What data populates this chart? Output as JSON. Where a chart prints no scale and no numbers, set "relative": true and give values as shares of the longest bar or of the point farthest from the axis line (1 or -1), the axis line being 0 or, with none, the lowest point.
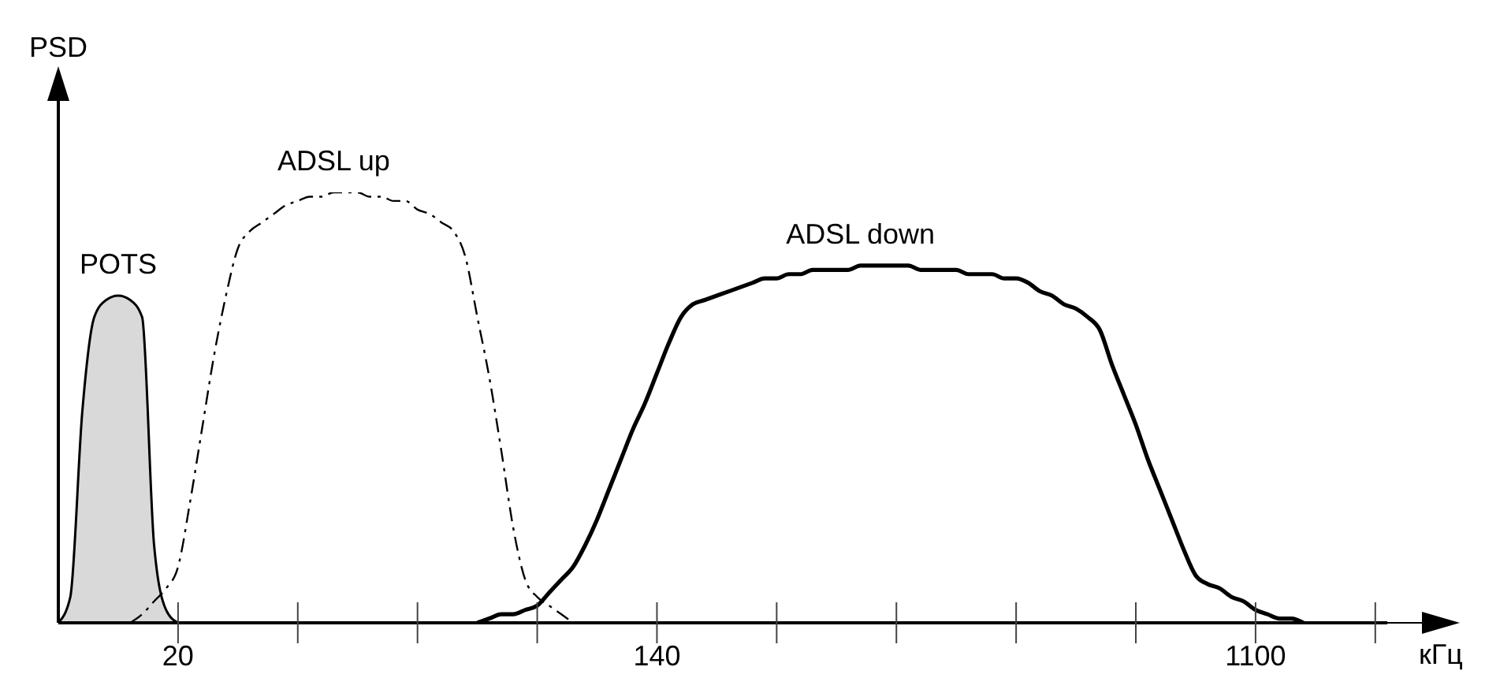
{
  "chart_data": {
    "type": "line",
    "relative": true,
    "xlabel": "кГц",
    "ylabel": "PSD",
    "tick_labels": "x",
    "categories": [
      null,
      null,
      null,
      null,
      null,
      null,
      null,
      null,
      null,
      null,
      "20",
      null,
      null,
      null,
      null,
      null,
      null,
      null,
      null,
      null,
      null,
      null,
      null,
      null,
      null,
      null,
      null,
      null,
      null,
      null,
      null,
      null,
      null,
      null,
      null,
      null,
      null,
      null,
      null,
      null,
      null,
      null,
      null,
      null,
      null,
      null,
      null,
      null,
      null,
      null,
      "140",
      null,
      null,
      null,
      null,
      null,
      null,
      null,
      null,
      null,
      null,
      null,
      null,
      null,
      null,
      null,
      null,
      null,
      null,
      null,
      null,
      null,
      null,
      null,
      null,
      null,
      null,
      null,
      null,
      null,
      null,
      null,
      null,
      null,
      null,
      null,
      null,
      null,
      null,
      null,
      null,
      null,
      null,
      null,
      null,
      null,
      null,
      null,
      null,
      null,
      "1100",
      null,
      null,
      null,
      null,
      null,
      null,
      null,
      null,
      null,
      null,
      null
    ],
    "series": [
      {
        "name": "POTS",
        "type": "area",
        "color": "#d9d9d9",
        "line_style": "solid",
        "values": [
          0,
          0.06,
          0.49,
          0.71,
          0.75,
          0.76,
          0.75,
          0.71,
          0.18,
          0.03,
          0,
          null,
          null,
          null,
          null,
          null,
          null,
          null,
          null,
          null,
          null,
          null,
          null,
          null,
          null,
          null,
          null,
          null,
          null,
          null,
          null,
          null,
          null,
          null,
          null,
          null,
          null,
          null,
          null,
          null,
          null,
          null,
          null,
          null,
          null,
          null,
          null,
          null,
          null,
          null,
          null,
          null,
          null,
          null,
          null,
          null,
          null,
          null,
          null,
          null,
          null,
          null,
          null,
          null,
          null,
          null,
          null,
          null,
          null,
          null,
          null,
          null,
          null,
          null,
          null,
          null,
          null,
          null,
          null,
          null,
          null,
          null,
          null,
          null,
          null,
          null,
          null,
          null,
          null,
          null,
          null,
          null,
          null,
          null,
          null,
          null,
          null,
          null,
          null,
          null,
          null,
          null,
          null,
          null,
          null,
          null,
          null,
          null,
          null,
          null,
          null,
          null
        ]
      },
      {
        "name": "ADSL up",
        "color": "#000000",
        "line_style": "dashed",
        "values": [
          null,
          null,
          null,
          null,
          null,
          null,
          0,
          0.02,
          0.05,
          0.08,
          0.13,
          0.28,
          0.45,
          0.62,
          0.76,
          0.87,
          0.91,
          0.93,
          0.95,
          0.97,
          0.98,
          0.99,
          0.99,
          1,
          1,
          1,
          0.99,
          0.99,
          0.98,
          0.98,
          0.96,
          0.95,
          0.93,
          0.91,
          0.85,
          0.71,
          0.57,
          0.4,
          0.22,
          0.1,
          0.06,
          0.04,
          0.02,
          0,
          null,
          null,
          null,
          null,
          null,
          null,
          null,
          null,
          null,
          null,
          null,
          null,
          null,
          null,
          null,
          null,
          null,
          null,
          null,
          null,
          null,
          null,
          null,
          null,
          null,
          null,
          null,
          null,
          null,
          null,
          null,
          null,
          null,
          null,
          null,
          null,
          null,
          null,
          null,
          null,
          null,
          null,
          null,
          null,
          null,
          null,
          null,
          null,
          null,
          null,
          null,
          null,
          null,
          null,
          null,
          null,
          null,
          null,
          null,
          null,
          null,
          null,
          null,
          null,
          null,
          null,
          null,
          null
        ]
      },
      {
        "name": "ADSL down",
        "color": "#000000",
        "line_style": "solid",
        "values": [
          null,
          null,
          null,
          null,
          null,
          null,
          null,
          null,
          null,
          null,
          null,
          null,
          null,
          null,
          null,
          null,
          null,
          null,
          null,
          null,
          null,
          null,
          null,
          null,
          null,
          null,
          null,
          null,
          null,
          null,
          null,
          null,
          null,
          null,
          null,
          0,
          0.01,
          0.02,
          0.02,
          0.03,
          0.04,
          0.07,
          0.1,
          0.13,
          0.18,
          0.24,
          0.31,
          0.38,
          0.45,
          0.51,
          0.58,
          0.65,
          0.71,
          0.74,
          0.75,
          0.76,
          0.77,
          0.78,
          0.79,
          0.8,
          0.8,
          0.81,
          0.81,
          0.82,
          0.82,
          0.82,
          0.82,
          0.83,
          0.83,
          0.83,
          0.83,
          0.83,
          0.82,
          0.82,
          0.82,
          0.82,
          0.81,
          0.81,
          0.81,
          0.8,
          0.8,
          0.79,
          0.77,
          0.76,
          0.74,
          0.73,
          0.71,
          0.68,
          0.6,
          0.53,
          0.46,
          0.38,
          0.31,
          0.24,
          0.17,
          0.11,
          0.09,
          0.08,
          0.06,
          0.05,
          0.03,
          0.02,
          0.01,
          0.01,
          0,
          null,
          null,
          null,
          null,
          null,
          null,
          null
        ]
      }
    ]
  }
}
